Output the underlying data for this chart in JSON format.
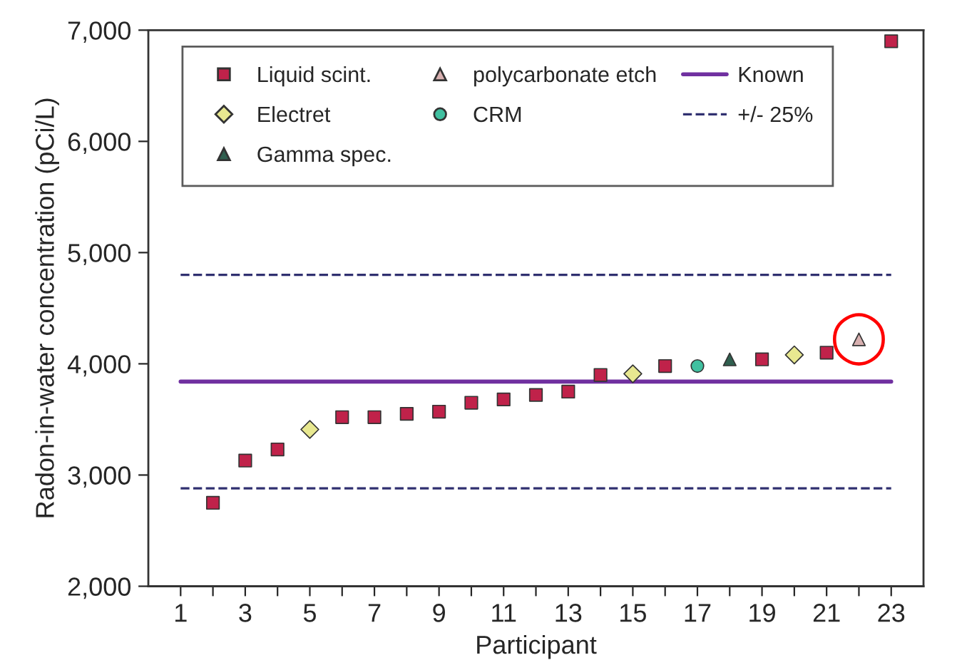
{
  "chart_data": {
    "type": "scatter",
    "xlabel": "Participant",
    "ylabel": "Radon-in-water concentration (pCi/L)",
    "xlim": [
      0,
      24
    ],
    "ylim": [
      2000,
      7000
    ],
    "xticks": [
      1,
      {
        "value": 2,
        "label": null
      },
      3,
      {
        "value": 4,
        "label": null
      },
      5,
      {
        "value": 6,
        "label": null
      },
      7,
      {
        "value": 8,
        "label": null
      },
      9,
      {
        "value": 10,
        "label": null
      },
      11,
      {
        "value": 12,
        "label": null
      },
      13,
      {
        "value": 14,
        "label": null
      },
      15,
      {
        "value": 16,
        "label": null
      },
      17,
      {
        "value": 18,
        "label": null
      },
      19,
      {
        "value": 20,
        "label": null
      },
      21,
      {
        "value": 22,
        "label": null
      },
      23
    ],
    "yticks": [
      {
        "value": 2000,
        "label": "2,000"
      },
      {
        "value": 3000,
        "label": "3,000"
      },
      {
        "value": 4000,
        "label": "4,000"
      },
      {
        "value": 5000,
        "label": "5,000"
      },
      {
        "value": 6000,
        "label": "6,000"
      },
      {
        "value": 7000,
        "label": "7,000"
      }
    ],
    "grid": false,
    "legend": "top left",
    "series": [
      {
        "name": "Liquid scint.",
        "marker": "square",
        "color": "#c0224a",
        "x": [
          2,
          3,
          4,
          6,
          7,
          8,
          9,
          10,
          11,
          12,
          13,
          14,
          16,
          19,
          21,
          23
        ],
        "values": [
          2750,
          3130,
          3230,
          3520,
          3520,
          3550,
          3570,
          3650,
          3680,
          3720,
          3750,
          3900,
          3980,
          4040,
          4100,
          6900
        ]
      },
      {
        "name": "Electret",
        "marker": "diamond",
        "color": "#e8e890",
        "x": [
          5,
          15,
          20
        ],
        "values": [
          3410,
          3910,
          4080
        ]
      },
      {
        "name": "Gamma spec.",
        "marker": "triangle",
        "color": "#2f5f4f",
        "x": [
          18
        ],
        "values": [
          4040
        ]
      },
      {
        "name": "polycarbonate etch",
        "marker": "triangle",
        "color": "#d8b0b0",
        "x": [
          22
        ],
        "values": [
          4220
        ]
      },
      {
        "name": "CRM",
        "marker": "circle",
        "color": "#40c0a0",
        "x": [
          17
        ],
        "values": [
          3980
        ]
      },
      {
        "name": "Known",
        "type": "line",
        "line_style": "solid",
        "marker": "none",
        "color": "#7030a0",
        "x": [
          1,
          23
        ],
        "values": [
          3840,
          3840
        ]
      },
      {
        "name": "+/- 25%",
        "type": "line",
        "line_style": "dashed",
        "marker": "none",
        "color": "#303070",
        "x": [
          1,
          23
        ],
        "values": [
          4800,
          4800
        ]
      },
      {
        "type": "line",
        "line_style": "dashed",
        "marker": "none",
        "color": "#303070",
        "x": [
          1,
          23
        ],
        "values": [
          2880,
          2880
        ]
      }
    ],
    "annotations": [
      {
        "text": "◯",
        "x": 22,
        "y": 4220
      }
    ]
  }
}
